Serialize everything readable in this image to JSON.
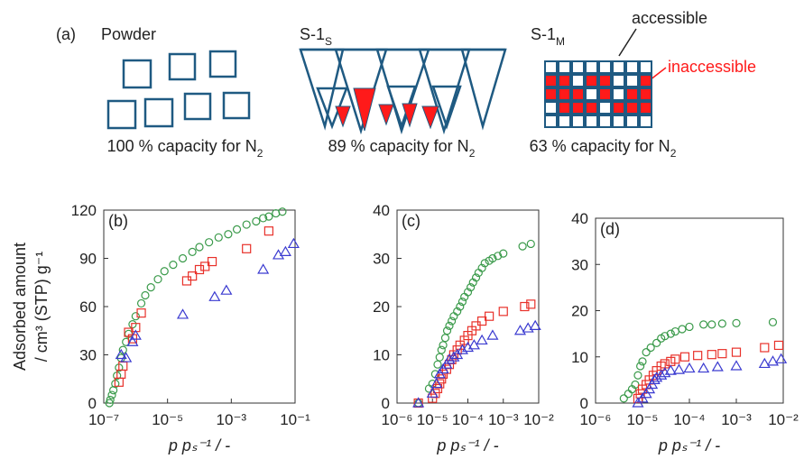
{
  "diagram": {
    "panel_label": "(a)",
    "powder_title": "Powder",
    "s1s_title": {
      "text": "S-1",
      "sub": "S"
    },
    "s1m_title": {
      "text": "S-1",
      "sub": "M"
    },
    "accessible": "accessible",
    "inaccessible": "inaccessible",
    "powder_caption": {
      "text": "100 % capacity for N",
      "sub": "2"
    },
    "s1s_caption": {
      "text": "89 % capacity for N",
      "sub": "2"
    },
    "s1m_caption": {
      "text": "63 % capacity for N",
      "sub": "2"
    }
  },
  "chart_data": [
    {
      "type": "scatter",
      "label": "(b)",
      "ylabel": [
        "Adsorbed amount",
        "/ cm³ (STP) g⁻¹"
      ],
      "xlabel": "p pₛ⁻¹ / -",
      "xscale": "log",
      "xlim": [
        1e-07,
        0.1
      ],
      "xticks": [
        {
          "value": 1e-07,
          "label": "10⁻⁷"
        },
        {
          "value": 1e-05,
          "label": "10⁻⁵"
        },
        {
          "value": 0.001,
          "label": "10⁻³"
        },
        {
          "value": 0.1,
          "label": "10⁻¹"
        }
      ],
      "ylim": [
        0,
        120
      ],
      "yticks": [
        0,
        30,
        60,
        90,
        120
      ],
      "series": [
        {
          "color": "#3a9a4a",
          "marker": "circle",
          "x": [
            1.5e-07,
            1.6e-07,
            1.8e-07,
            2e-07,
            2.3e-07,
            2.6e-07,
            3e-07,
            3.5e-07,
            4e-07,
            5e-07,
            6e-07,
            8e-07,
            1e-06,
            1.5e-06,
            2e-06,
            3e-06,
            5e-06,
            8e-06,
            1.5e-05,
            3e-05,
            6e-05,
            0.0001,
            0.0002,
            0.0004,
            0.0008,
            0.0015,
            0.003,
            0.006,
            0.01,
            0.015,
            0.025,
            0.04
          ],
          "values": [
            0,
            2,
            5,
            8,
            12,
            17,
            22,
            28,
            33,
            38,
            43,
            49,
            54,
            62,
            67,
            72,
            77,
            82,
            86,
            90,
            94,
            97,
            100,
            103,
            105,
            108,
            111,
            113,
            115,
            116,
            118,
            119
          ]
        },
        {
          "color": "#e8312a",
          "marker": "square",
          "x": [
            3e-07,
            3.5e-07,
            4e-07,
            6e-07,
            8e-07,
            1e-06,
            1.5e-06,
            4e-05,
            6e-05,
            0.0001,
            0.00015,
            0.00025,
            0.003,
            0.015
          ],
          "values": [
            13,
            18,
            23,
            44,
            40,
            47,
            56,
            76,
            79,
            83,
            85,
            88,
            96,
            107
          ]
        },
        {
          "color": "#3a3ad0",
          "marker": "triangle",
          "x": [
            3.5e-07,
            5e-07,
            8e-07,
            1e-06,
            3e-05,
            0.0003,
            0.0007,
            0.01,
            0.03,
            0.05,
            0.09
          ],
          "values": [
            30,
            28,
            38,
            42,
            55,
            66,
            70,
            83,
            92,
            94,
            99
          ]
        }
      ]
    },
    {
      "type": "scatter",
      "label": "(c)",
      "xlabel": "p pₛ⁻¹ / -",
      "xscale": "log",
      "xlim": [
        1e-06,
        0.01
      ],
      "xticks": [
        {
          "value": 1e-06,
          "label": "10⁻⁶"
        },
        {
          "value": 1e-05,
          "label": "10⁻⁵"
        },
        {
          "value": 0.0001,
          "label": "10⁻⁴"
        },
        {
          "value": 0.001,
          "label": "10⁻³"
        },
        {
          "value": 0.01,
          "label": "10⁻²"
        }
      ],
      "ylim": [
        0,
        40
      ],
      "yticks": [
        0,
        10,
        20,
        30,
        40
      ],
      "series": [
        {
          "color": "#3a9a4a",
          "marker": "circle",
          "x": [
            4e-06,
            8e-06,
            1e-05,
            1.2e-05,
            1.4e-05,
            1.6e-05,
            1.8e-05,
            2e-05,
            2.3e-05,
            2.6e-05,
            3e-05,
            3.5e-05,
            4e-05,
            5e-05,
            6e-05,
            7e-05,
            8e-05,
            0.0001,
            0.00012,
            0.00014,
            0.00017,
            0.0002,
            0.00025,
            0.0003,
            0.0004,
            0.0005,
            0.0007,
            0.001,
            0.0035,
            0.006
          ],
          "values": [
            0,
            3,
            4,
            6,
            8,
            9.5,
            11,
            12,
            13.5,
            15,
            16,
            17,
            18,
            19,
            20,
            21,
            22,
            23,
            24,
            25,
            26,
            27,
            28,
            29,
            29.5,
            30,
            30.5,
            31,
            32.5,
            33
          ]
        },
        {
          "color": "#e8312a",
          "marker": "square",
          "x": [
            4e-06,
            1e-05,
            1.2e-05,
            1.4e-05,
            1.6e-05,
            1.8e-05,
            2e-05,
            2.5e-05,
            3e-05,
            3.5e-05,
            4e-05,
            5e-05,
            6e-05,
            8e-05,
            0.0001,
            0.00013,
            0.00017,
            0.00025,
            0.0004,
            0.001,
            0.004,
            0.006
          ],
          "values": [
            0,
            1,
            2,
            3,
            4,
            5,
            6,
            7,
            8,
            9,
            10,
            11,
            12,
            13,
            14,
            15,
            16,
            17,
            18,
            19,
            20,
            20.5
          ]
        },
        {
          "color": "#3a3ad0",
          "marker": "triangle",
          "x": [
            4e-06,
            1e-05,
            1.3e-05,
            1.6e-05,
            2e-05,
            2.5e-05,
            3e-05,
            4e-05,
            5e-05,
            7e-05,
            0.0001,
            0.00015,
            0.00025,
            0.0005,
            0.003,
            0.005,
            0.008
          ],
          "values": [
            0,
            2,
            4,
            6,
            7,
            8,
            9,
            9.5,
            10,
            11,
            11.5,
            12,
            13,
            14,
            15,
            15.5,
            16
          ]
        }
      ]
    },
    {
      "type": "scatter",
      "label": "(d)",
      "xlabel": "p pₛ⁻¹ / -",
      "xscale": "log",
      "xlim": [
        1e-06,
        0.01
      ],
      "xticks": [
        {
          "value": 1e-06,
          "label": "10⁻⁶"
        },
        {
          "value": 1e-05,
          "label": "10⁻⁵"
        },
        {
          "value": 0.0001,
          "label": "10⁻⁴"
        },
        {
          "value": 0.001,
          "label": "10⁻³"
        },
        {
          "value": 0.01,
          "label": "10⁻²"
        }
      ],
      "ylim": [
        0,
        40
      ],
      "yticks": [
        0,
        10,
        20,
        30,
        40
      ],
      "series": [
        {
          "color": "#3a9a4a",
          "marker": "circle",
          "x": [
            4e-06,
            5e-06,
            6e-06,
            7e-06,
            8e-06,
            9e-06,
            1e-05,
            1.2e-05,
            1.5e-05,
            2e-05,
            2.5e-05,
            3e-05,
            4e-05,
            5e-05,
            7e-05,
            0.0001,
            0.0002,
            0.0003,
            0.0005,
            0.001,
            0.006
          ],
          "values": [
            1,
            2,
            3,
            4,
            6,
            8,
            9,
            11,
            12,
            13,
            14,
            14.5,
            15,
            15.5,
            16,
            16.5,
            17,
            17,
            17.2,
            17.3,
            17.5
          ]
        },
        {
          "color": "#e8312a",
          "marker": "square",
          "x": [
            8e-06,
            9e-06,
            1e-05,
            1.2e-05,
            1.4e-05,
            1.7e-05,
            2e-05,
            2.5e-05,
            3e-05,
            4e-05,
            5e-05,
            8e-05,
            0.00015,
            0.0003,
            0.0005,
            0.001,
            0.004,
            0.008
          ],
          "values": [
            1,
            2,
            3,
            4,
            5,
            6,
            7,
            8,
            8.5,
            9,
            9.5,
            10,
            10.3,
            10.5,
            10.7,
            11,
            12,
            12.5
          ]
        },
        {
          "color": "#3a3ad0",
          "marker": "triangle",
          "x": [
            8e-06,
            1e-05,
            1.2e-05,
            1.4e-05,
            1.6e-05,
            1.8e-05,
            2e-05,
            2.5e-05,
            3e-05,
            4e-05,
            6e-05,
            0.0001,
            0.0002,
            0.0004,
            0.001,
            0.004,
            0.006,
            0.009
          ],
          "values": [
            0,
            1,
            2,
            3,
            4,
            5,
            5.5,
            6,
            6.5,
            7,
            7.2,
            7.5,
            7.5,
            7.8,
            8,
            8.5,
            9,
            9.5
          ]
        }
      ]
    }
  ]
}
